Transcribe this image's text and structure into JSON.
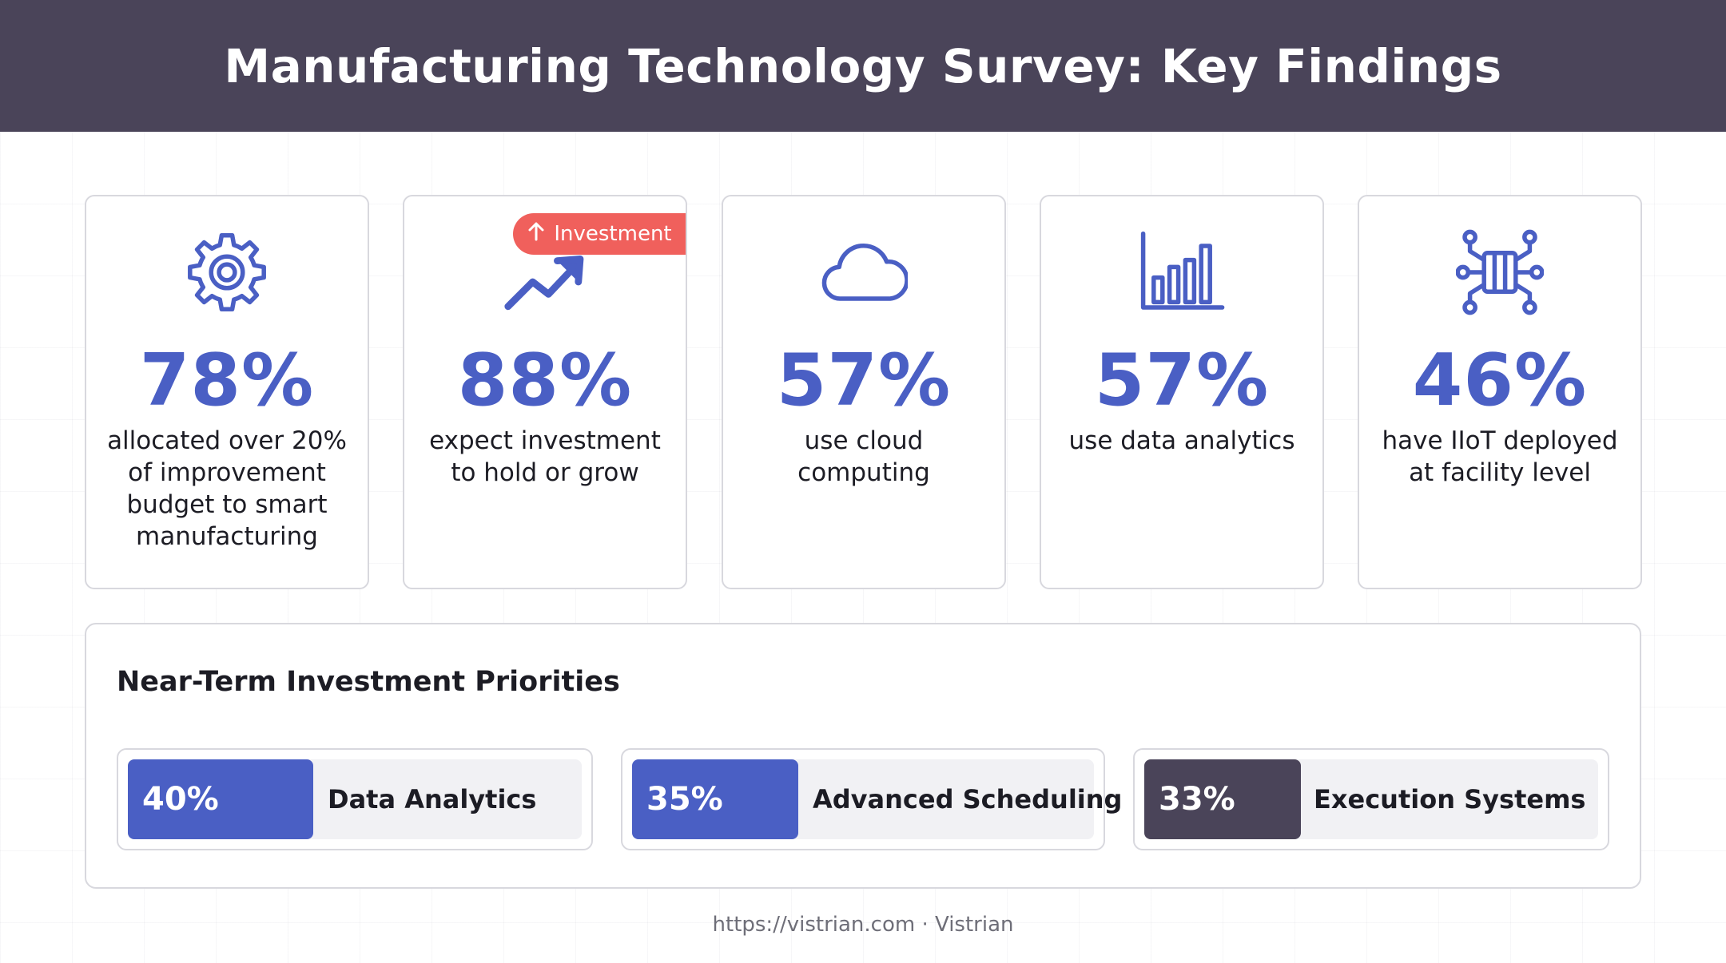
{
  "header": {
    "title": "Manufacturing Technology Survey: Key Findings"
  },
  "stats": [
    {
      "value": "78%",
      "description": "allocated over 20% of improvement budget to smart manufacturing",
      "icon": "gear-icon"
    },
    {
      "value": "88%",
      "description": "expect investment to hold or grow",
      "icon": "trend-up-icon",
      "badge": "Investment",
      "badge_icon": "arrow-up-icon"
    },
    {
      "value": "57%",
      "description": "use cloud computing",
      "icon": "cloud-icon"
    },
    {
      "value": "57%",
      "description": "use data analytics",
      "icon": "bar-chart-icon"
    },
    {
      "value": "46%",
      "description": "have IIoT deployed at facility level",
      "icon": "circuit-icon"
    }
  ],
  "priorities": {
    "title": "Near-Term Investment Priorities",
    "items": [
      {
        "percent": "40%",
        "label": "Data Analytics",
        "level": 40,
        "color": "#4a5fc4"
      },
      {
        "percent": "35%",
        "label": "Advanced Scheduling",
        "level": 35,
        "color": "#4a5fc4"
      },
      {
        "percent": "33%",
        "label": "Execution Systems",
        "level": 33,
        "color": "#4a4459"
      }
    ]
  },
  "footer": {
    "text": "https://vistrian.com · Vistrian"
  },
  "colors": {
    "header_bg": "#4a4459",
    "accent": "#4a5fc4",
    "badge": "#f0605c"
  }
}
